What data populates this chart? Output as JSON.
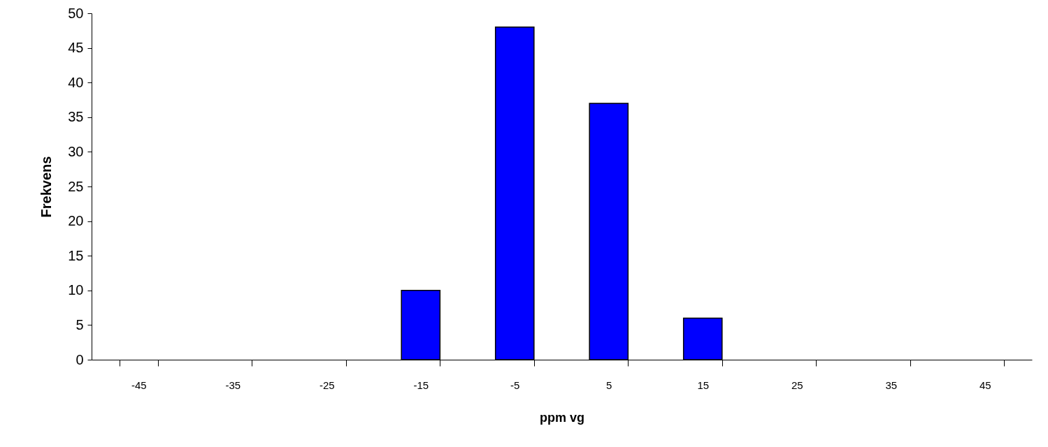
{
  "chart_data": {
    "type": "bar",
    "xlabel": "ppm vg",
    "ylabel": "Frekvens",
    "categories": [
      "-45",
      "-35",
      "-25",
      "-15",
      "-5",
      "5",
      "15",
      "25",
      "35",
      "45"
    ],
    "series": [
      {
        "color": "#0000ff",
        "values": [
          0,
          0,
          0,
          10,
          48,
          37,
          6,
          0,
          0,
          0
        ]
      }
    ],
    "ylim": [
      0,
      50
    ],
    "yticks": [
      0,
      5,
      10,
      15,
      20,
      25,
      30,
      35,
      40,
      45,
      50
    ],
    "grid": false
  }
}
